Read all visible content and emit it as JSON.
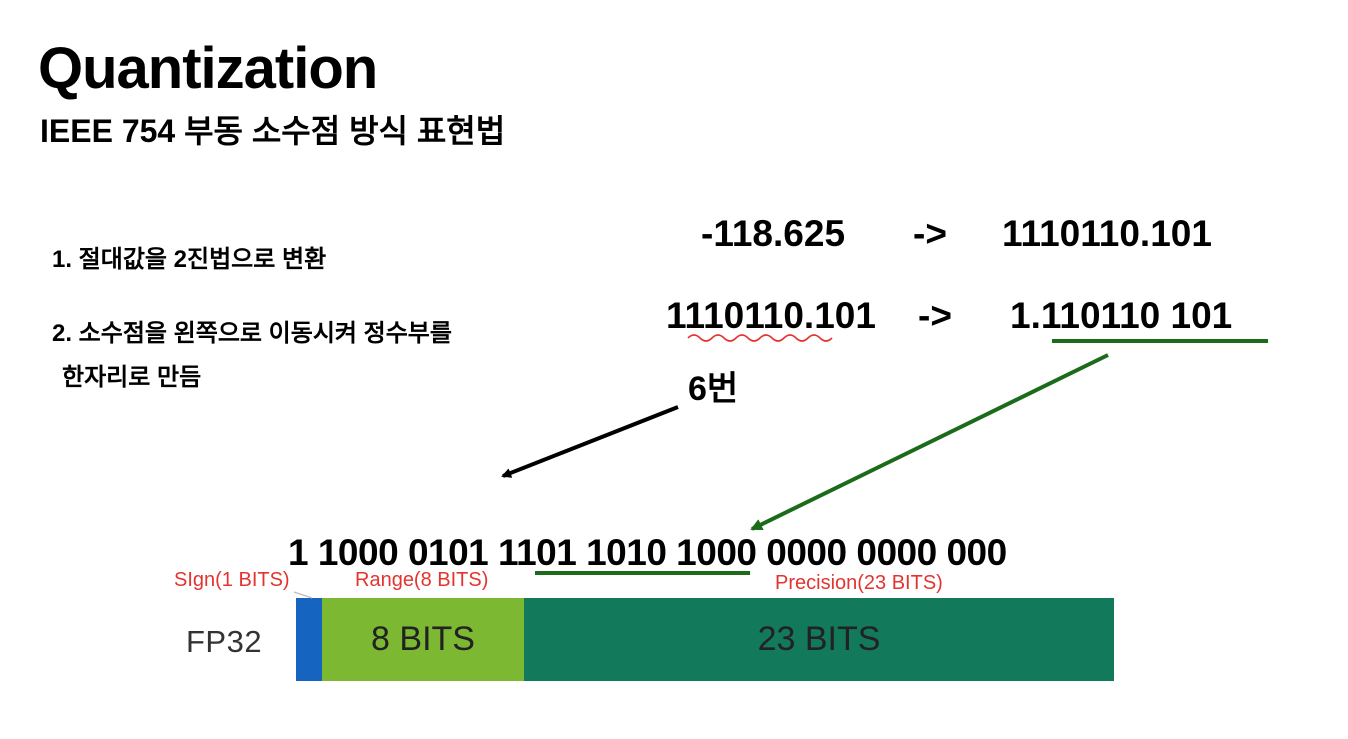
{
  "header": {
    "title": "Quantization",
    "subtitle": "IEEE 754 부동 소수점 방식 표현법"
  },
  "steps": {
    "step1": "1. 절대값을 2진법으로 변환",
    "step2_line1": "2. 소수점을 왼쪽으로 이동시켜 정수부를",
    "step2_line2": "한자리로 만듬"
  },
  "conversion": {
    "row1": {
      "from": "-118.625",
      "arrow": "->",
      "to": "1110110.101"
    },
    "row2": {
      "from": "1110110.101",
      "arrow": "->",
      "to": "1.110110 101"
    },
    "shift_label": "6번"
  },
  "bit_string": {
    "sign_and_exponent": "1 1000 0101",
    "mantissa_highlight": "1101 1010 1",
    "mantissa_rest": "000 0000 0000 000"
  },
  "field_labels": {
    "sign": "SIgn(1 BITS)",
    "range": "Range(8 BITS)",
    "precision": "Precision(23 BITS)"
  },
  "fp32_bar": {
    "format_label": "FP32",
    "segments": [
      {
        "name": "sign",
        "label": "",
        "color": "#1565c0"
      },
      {
        "name": "exponent",
        "label": "8 BITS",
        "color": "#7cb832"
      },
      {
        "name": "mantissa",
        "label": "23 BITS",
        "color": "#127a5a"
      }
    ]
  },
  "colors": {
    "annotation_red": "#e3342f",
    "highlight_green": "#1b6b1b",
    "arrow_black": "#000000"
  }
}
